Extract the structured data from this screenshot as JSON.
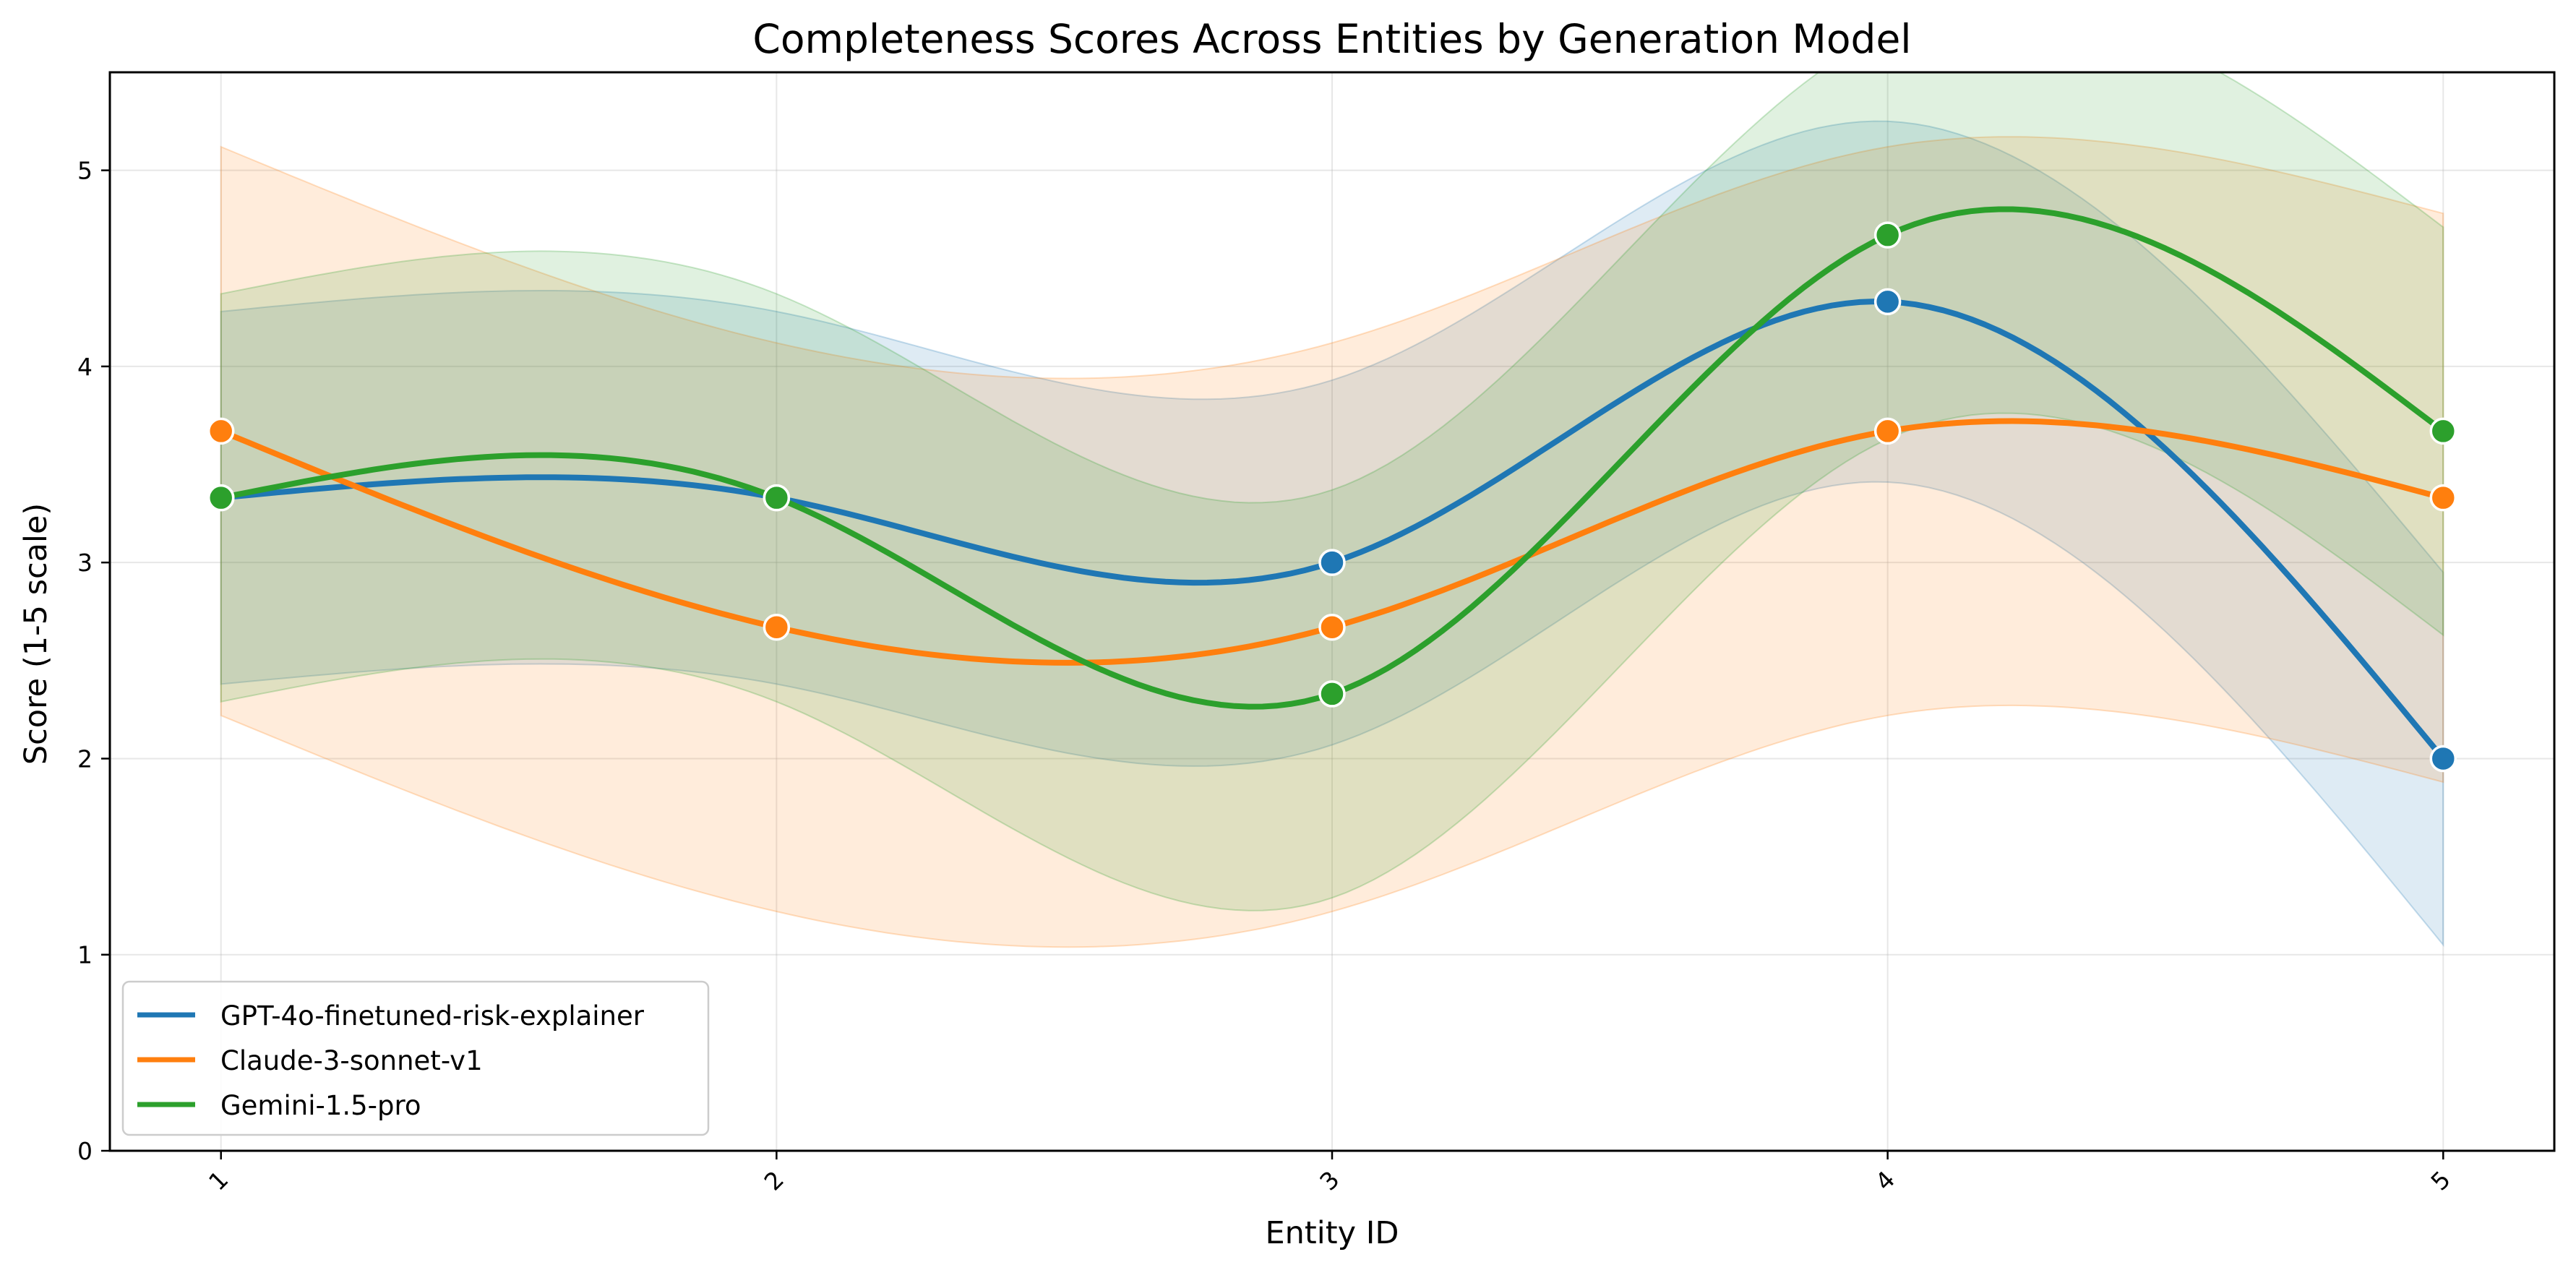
{
  "chart_data": {
    "type": "line",
    "title": "Completeness Scores Across Entities by Generation Model",
    "xlabel": "Entity ID",
    "ylabel": "Score (1-5 scale)",
    "x": [
      1,
      2,
      3,
      4,
      5
    ],
    "x_tick_labels": [
      "1",
      "2",
      "3",
      "4",
      "5"
    ],
    "y_ticks": [
      0,
      1,
      2,
      3,
      4,
      5
    ],
    "y_tick_labels": [
      "0",
      "1",
      "2",
      "3",
      "4",
      "5"
    ],
    "xlim": [
      0.8,
      5.2
    ],
    "ylim": [
      0,
      5.5
    ],
    "grid": true,
    "legend_position": "lower-left",
    "smoothed": true,
    "series": [
      {
        "name": "GPT-4o-finetuned-risk-explainer",
        "color": "#1f77b4",
        "values": [
          3.33,
          3.33,
          3.0,
          4.33,
          2.0
        ],
        "band_upper": [
          4.28,
          4.28,
          3.93,
          5.25,
          2.95
        ],
        "band_lower": [
          2.38,
          2.38,
          2.07,
          3.41,
          1.05
        ]
      },
      {
        "name": "Claude-3-sonnet-v1",
        "color": "#ff7f0e",
        "values": [
          3.67,
          2.67,
          2.67,
          3.67,
          3.33
        ],
        "band_upper": [
          5.12,
          4.12,
          4.12,
          5.12,
          4.78
        ],
        "band_lower": [
          2.22,
          1.22,
          1.22,
          2.22,
          1.88
        ]
      },
      {
        "name": "Gemini-1.5-pro",
        "color": "#2ca02c",
        "values": [
          3.33,
          3.33,
          2.33,
          4.67,
          3.67
        ],
        "band_upper": [
          4.37,
          4.37,
          3.37,
          5.71,
          4.71
        ],
        "band_lower": [
          2.29,
          2.29,
          1.29,
          3.63,
          2.63
        ]
      }
    ]
  }
}
